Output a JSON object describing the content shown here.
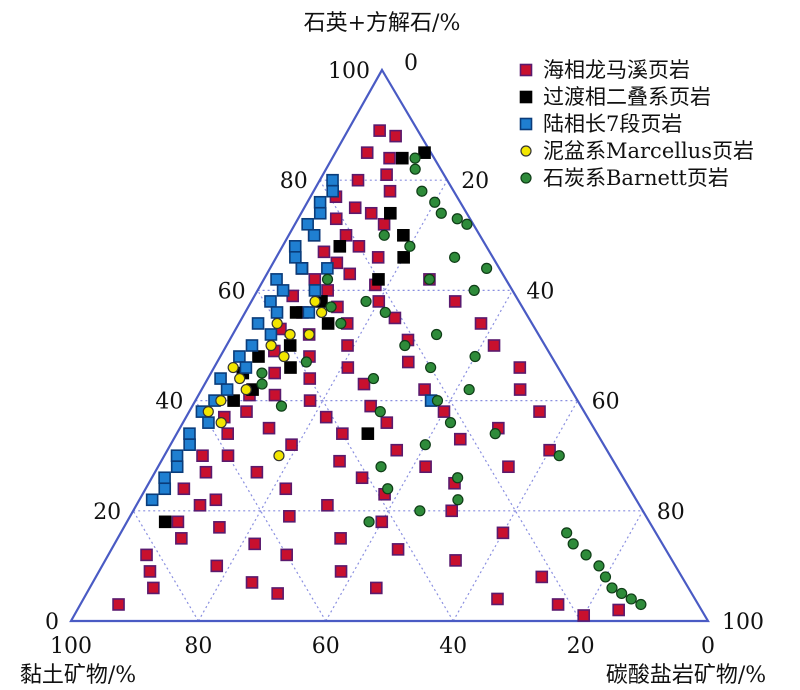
{
  "chart_data": {
    "type": "ternary-scatter",
    "axes": {
      "top": {
        "label": "石英+方解石/%",
        "ticks": [
          "100",
          "80",
          "60",
          "40",
          "20",
          "0"
        ],
        "tick_values": [
          100,
          80,
          60,
          40,
          20,
          0
        ]
      },
      "right": {
        "label": "碳酸盐岩矿物/%",
        "ticks": [
          "0",
          "20",
          "40",
          "60",
          "80",
          "100"
        ],
        "tick_values": [
          0,
          20,
          40,
          60,
          80,
          100
        ]
      },
      "left": {
        "label": "黏土矿物/%",
        "ticks": [
          "100",
          "80",
          "60",
          "40",
          "20",
          "0"
        ],
        "tick_values": [
          100,
          80,
          60,
          40,
          20,
          0
        ]
      }
    },
    "grid": true,
    "legend_position": "top-right",
    "series": [
      {
        "name": "海相龙马溪页岩",
        "marker": "square",
        "color": "#c8102e",
        "edge": "#5a1a6e",
        "points": [
          [
            89,
            5
          ],
          [
            88,
            8
          ],
          [
            85,
            5
          ],
          [
            84,
            9
          ],
          [
            81,
            10
          ],
          [
            80,
            6
          ],
          [
            78,
            12
          ],
          [
            77,
            4
          ],
          [
            75,
            8
          ],
          [
            74,
            11
          ],
          [
            73,
            6
          ],
          [
            72,
            14
          ],
          [
            70,
            9
          ],
          [
            70,
            4
          ],
          [
            68,
            12
          ],
          [
            67,
            7
          ],
          [
            66,
            16
          ],
          [
            65,
            10
          ],
          [
            64,
            5
          ],
          [
            63,
            13
          ],
          [
            62,
            8
          ],
          [
            61,
            18
          ],
          [
            60,
            11
          ],
          [
            59,
            6
          ],
          [
            58,
            20
          ],
          [
            57,
            14
          ],
          [
            56,
            9
          ],
          [
            55,
            24
          ],
          [
            54,
            17
          ],
          [
            53,
            7
          ],
          [
            52,
            12
          ],
          [
            51,
            28
          ],
          [
            50,
            19
          ],
          [
            49,
            8
          ],
          [
            48,
            14
          ],
          [
            47,
            30
          ],
          [
            46,
            21
          ],
          [
            45,
            10
          ],
          [
            44,
            16
          ],
          [
            43,
            25
          ],
          [
            42,
            35
          ],
          [
            41,
            12
          ],
          [
            40,
            18
          ],
          [
            39,
            28
          ],
          [
            38,
            40
          ],
          [
            38,
            9
          ],
          [
            37,
            22
          ],
          [
            36,
            32
          ],
          [
            35,
            14
          ],
          [
            34,
            26
          ],
          [
            33,
            45
          ],
          [
            32,
            19
          ],
          [
            31,
            36
          ],
          [
            30,
            10
          ],
          [
            29,
            28
          ],
          [
            28,
            42
          ],
          [
            27,
            16
          ],
          [
            26,
            33
          ],
          [
            25,
            48
          ],
          [
            24,
            22
          ],
          [
            23,
            38
          ],
          [
            22,
            12
          ],
          [
            21,
            30
          ],
          [
            20,
            50
          ],
          [
            19,
            25
          ],
          [
            18,
            40
          ],
          [
            17,
            15
          ],
          [
            16,
            60
          ],
          [
            15,
            35
          ],
          [
            14,
            22
          ],
          [
            13,
            45
          ],
          [
            12,
            28
          ],
          [
            11,
            55
          ],
          [
            10,
            18
          ],
          [
            9,
            38
          ],
          [
            8,
            70
          ],
          [
            7,
            25
          ],
          [
            6,
            45
          ],
          [
            5,
            30
          ],
          [
            4,
            65
          ],
          [
            3,
            75
          ],
          [
            2,
            85
          ],
          [
            1,
            80
          ],
          [
            62,
            26
          ],
          [
            58,
            32
          ],
          [
            54,
            38
          ],
          [
            50,
            42
          ],
          [
            46,
            48
          ],
          [
            42,
            50
          ],
          [
            38,
            55
          ],
          [
            35,
            50
          ],
          [
            31,
            60
          ],
          [
            28,
            55
          ],
          [
            41,
            8
          ],
          [
            37,
            6
          ],
          [
            34,
            8
          ],
          [
            30,
            6
          ],
          [
            27,
            8
          ],
          [
            24,
            6
          ],
          [
            21,
            10
          ],
          [
            18,
            8
          ],
          [
            15,
            10
          ],
          [
            12,
            6
          ],
          [
            9,
            8
          ],
          [
            6,
            10
          ],
          [
            3,
            6
          ]
        ]
      },
      {
        "name": "过渡相二叠系页岩",
        "marker": "square",
        "color": "#000000",
        "edge": "#000000",
        "points": [
          [
            85,
            14
          ],
          [
            84,
            11
          ],
          [
            74,
            14
          ],
          [
            70,
            18
          ],
          [
            68,
            9
          ],
          [
            66,
            20
          ],
          [
            64,
            5
          ],
          [
            62,
            18
          ],
          [
            58,
            11
          ],
          [
            56,
            8
          ],
          [
            54,
            14
          ],
          [
            50,
            10
          ],
          [
            48,
            6
          ],
          [
            46,
            12
          ],
          [
            45,
            5
          ],
          [
            42,
            8
          ],
          [
            40,
            6
          ],
          [
            34,
            30
          ],
          [
            18,
            6
          ]
        ]
      },
      {
        "name": "陆相长7段页岩",
        "marker": "square",
        "color": "#1f7fd1",
        "edge": "#0a3c7a",
        "points": [
          [
            80,
            2
          ],
          [
            78,
            3
          ],
          [
            76,
            2
          ],
          [
            74,
            3
          ],
          [
            72,
            2
          ],
          [
            70,
            4
          ],
          [
            68,
            2
          ],
          [
            66,
            3
          ],
          [
            64,
            5
          ],
          [
            62,
            2
          ],
          [
            60,
            4
          ],
          [
            58,
            3
          ],
          [
            56,
            5
          ],
          [
            54,
            3
          ],
          [
            52,
            6
          ],
          [
            50,
            4
          ],
          [
            48,
            3
          ],
          [
            46,
            5
          ],
          [
            44,
            2
          ],
          [
            42,
            4
          ],
          [
            40,
            3
          ],
          [
            38,
            2
          ],
          [
            36,
            4
          ],
          [
            34,
            2
          ],
          [
            32,
            3
          ],
          [
            30,
            2
          ],
          [
            28,
            3
          ],
          [
            26,
            2
          ],
          [
            24,
            3
          ],
          [
            22,
            2
          ],
          [
            64,
            9
          ],
          [
            60,
            9
          ],
          [
            56,
            10
          ],
          [
            40,
            37
          ]
        ]
      },
      {
        "name": "泥盆系Marcellus页岩",
        "marker": "circle",
        "color": "#f2e600",
        "edge": "#333333",
        "points": [
          [
            54,
            6
          ],
          [
            52,
            9
          ],
          [
            50,
            7
          ],
          [
            46,
            3
          ],
          [
            44,
            5
          ],
          [
            42,
            7
          ],
          [
            40,
            4
          ],
          [
            38,
            3
          ],
          [
            36,
            6
          ],
          [
            52,
            12
          ],
          [
            48,
            10
          ],
          [
            56,
            12
          ],
          [
            58,
            10
          ],
          [
            30,
            18
          ]
        ]
      },
      {
        "name": "石炭系Barnett页岩",
        "marker": "circle",
        "color": "#2e8b3a",
        "edge": "#0f3d17",
        "points": [
          [
            84,
            13
          ],
          [
            82,
            14
          ],
          [
            78,
            17
          ],
          [
            76,
            20
          ],
          [
            74,
            22
          ],
          [
            73,
            25
          ],
          [
            72,
            27
          ],
          [
            70,
            15
          ],
          [
            68,
            20
          ],
          [
            66,
            28
          ],
          [
            64,
            34
          ],
          [
            62,
            26
          ],
          [
            60,
            34
          ],
          [
            58,
            18
          ],
          [
            56,
            22
          ],
          [
            54,
            16
          ],
          [
            52,
            32
          ],
          [
            50,
            28
          ],
          [
            48,
            40
          ],
          [
            46,
            34
          ],
          [
            44,
            26
          ],
          [
            42,
            42
          ],
          [
            40,
            38
          ],
          [
            38,
            30
          ],
          [
            36,
            42
          ],
          [
            34,
            50
          ],
          [
            32,
            40
          ],
          [
            30,
            62
          ],
          [
            28,
            35
          ],
          [
            26,
            48
          ],
          [
            24,
            38
          ],
          [
            22,
            50
          ],
          [
            20,
            45
          ],
          [
            18,
            38
          ],
          [
            16,
            70
          ],
          [
            14,
            72
          ],
          [
            12,
            75
          ],
          [
            10,
            78
          ],
          [
            8,
            80
          ],
          [
            6,
            82
          ],
          [
            5,
            84
          ],
          [
            4,
            86
          ],
          [
            3,
            88
          ],
          [
            62,
            10
          ],
          [
            57,
            13
          ],
          [
            47,
            14
          ],
          [
            45,
            8
          ],
          [
            43,
            9
          ],
          [
            39,
            14
          ]
        ]
      }
    ]
  }
}
